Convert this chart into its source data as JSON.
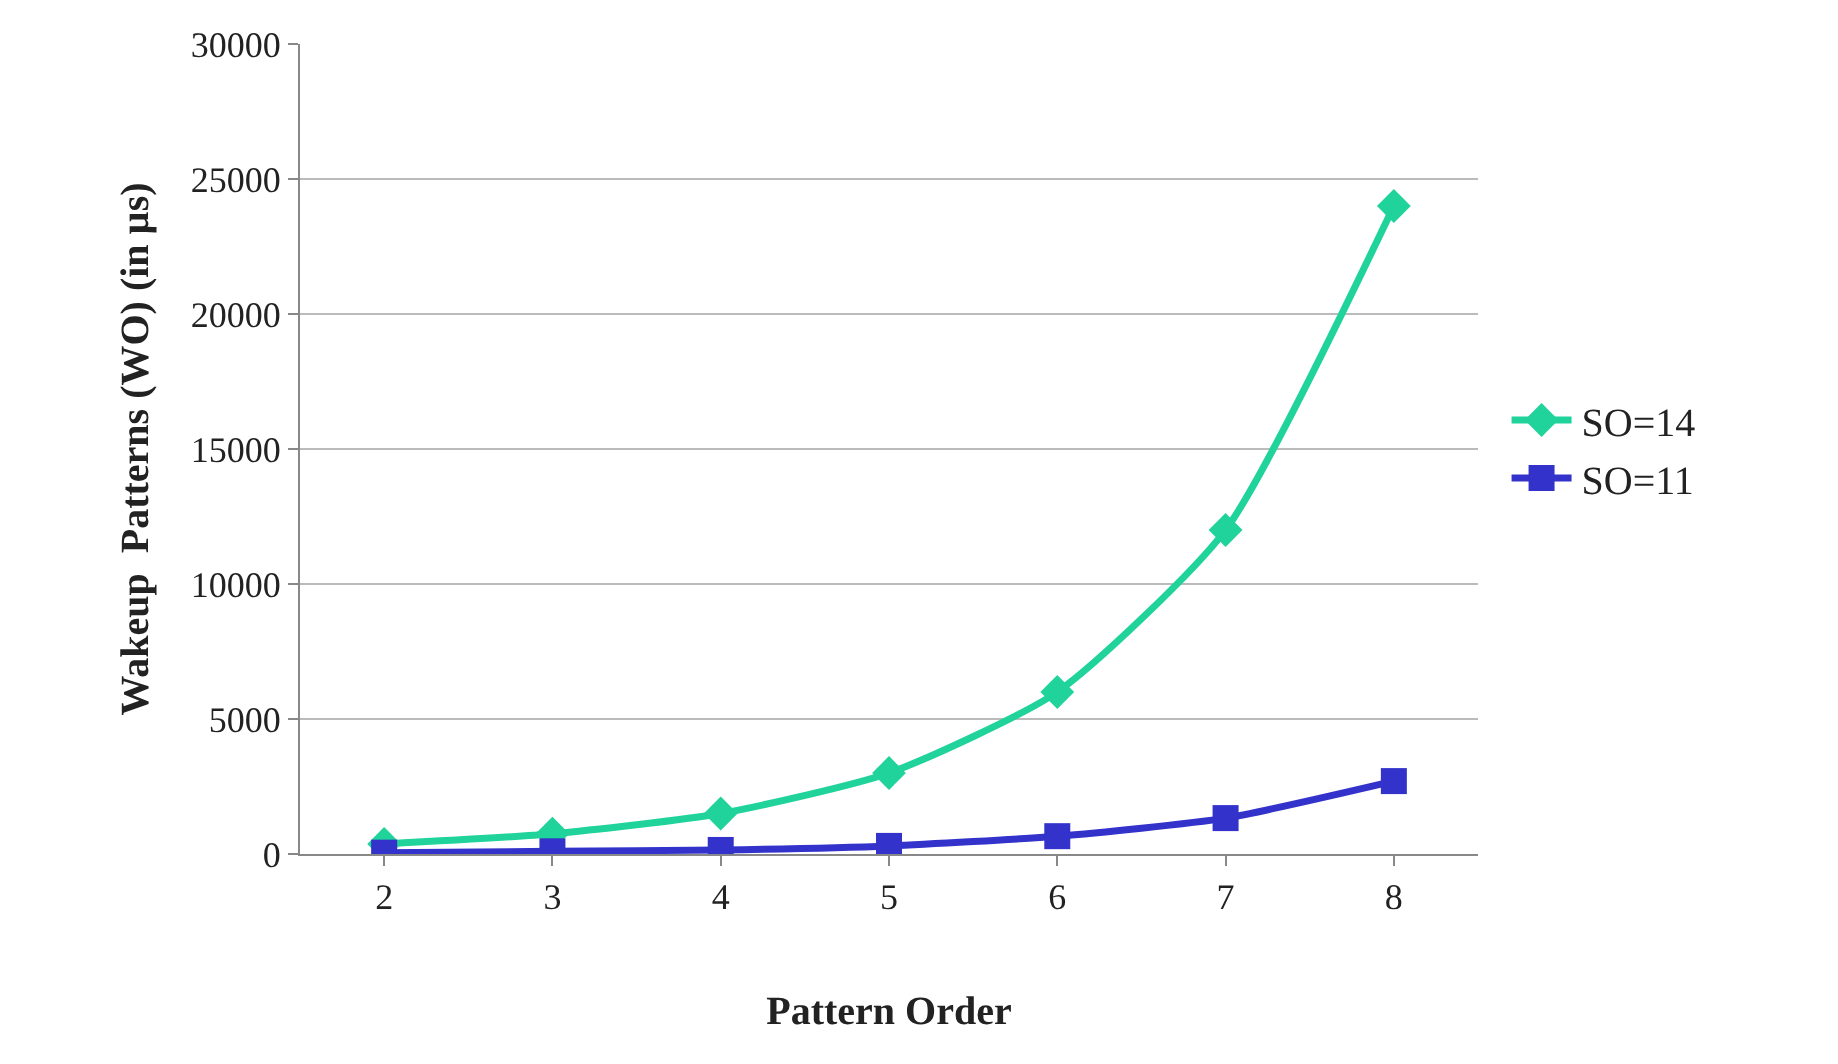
{
  "chart_data": {
    "type": "line",
    "xlabel": "Pattern Order",
    "ylabel": "Wakeup  Patterns (WO) (in µs)",
    "categories": [
      "2",
      "3",
      "4",
      "5",
      "6",
      "7",
      "8"
    ],
    "series": [
      {
        "name": "SO=14",
        "color": "#1fd39a",
        "marker": "diamond",
        "values": [
          375,
          750,
          1500,
          3000,
          6000,
          12000,
          24000
        ]
      },
      {
        "name": "SO=11",
        "color": "#3333cc",
        "marker": "square",
        "values": [
          50,
          100,
          150,
          300,
          660,
          1330,
          2700
        ]
      }
    ],
    "ylim": [
      0,
      30000
    ],
    "yticks": [
      0,
      5000,
      10000,
      15000,
      20000,
      25000,
      30000
    ],
    "grid": "y",
    "legend": "right",
    "line_style": "solid"
  }
}
